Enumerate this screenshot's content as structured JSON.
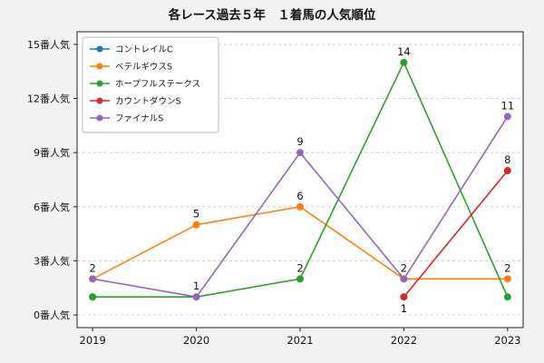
{
  "chart_data": {
    "type": "line",
    "title": "各レース過去５年　１着馬の人気順位",
    "x": [
      "2019",
      "2020",
      "2021",
      "2022",
      "2023"
    ],
    "xlim": [
      -0.15,
      4.15
    ],
    "ylim": [
      -0.7,
      15.7
    ],
    "yticks": [
      0,
      3,
      6,
      9,
      12,
      15
    ],
    "ytick_labels": [
      "0番人気",
      "3番人気",
      "6番人気",
      "9番人気",
      "12番人気",
      "15番人気"
    ],
    "grid": "horizontal-dashed",
    "legend_position": "upper-left",
    "colors": {
      "figure_bg": "#f2f2f2",
      "plot_bg": "#ffffff",
      "grid": "#c8c8c8",
      "axis": "#222222",
      "text": "#111111"
    },
    "series": [
      {
        "name": "コントレイルC",
        "color": "#1f77b4",
        "values": [
          1,
          null,
          null,
          null,
          null
        ]
      },
      {
        "name": "ベテルギウスS",
        "color": "#ff7f0e",
        "values": [
          2,
          5,
          6,
          2,
          2
        ]
      },
      {
        "name": "ホープフルステークス",
        "color": "#2ca02c",
        "values": [
          1,
          1,
          2,
          14,
          1
        ]
      },
      {
        "name": "カウントダウンS",
        "color": "#d62728",
        "values": [
          null,
          null,
          null,
          1,
          8
        ]
      },
      {
        "name": "ファイナルS",
        "color": "#9467bd",
        "values": [
          2,
          1,
          9,
          2,
          11
        ]
      }
    ],
    "annotations": [
      {
        "xi": 0,
        "y": 2,
        "text": "2",
        "pos": "above"
      },
      {
        "xi": 1,
        "y": 5,
        "text": "5",
        "pos": "above"
      },
      {
        "xi": 1,
        "y": 1,
        "text": "1",
        "pos": "above"
      },
      {
        "xi": 2,
        "y": 6,
        "text": "6",
        "pos": "above"
      },
      {
        "xi": 2,
        "y": 9,
        "text": "9",
        "pos": "above"
      },
      {
        "xi": 2,
        "y": 2,
        "text": "2",
        "pos": "above"
      },
      {
        "xi": 3,
        "y": 14,
        "text": "14",
        "pos": "above"
      },
      {
        "xi": 3,
        "y": 2,
        "text": "2",
        "pos": "above"
      },
      {
        "xi": 3,
        "y": 1,
        "text": "1",
        "pos": "below"
      },
      {
        "xi": 4,
        "y": 11,
        "text": "11",
        "pos": "above"
      },
      {
        "xi": 4,
        "y": 8,
        "text": "8",
        "pos": "above"
      },
      {
        "xi": 4,
        "y": 2,
        "text": "2",
        "pos": "above"
      }
    ]
  }
}
